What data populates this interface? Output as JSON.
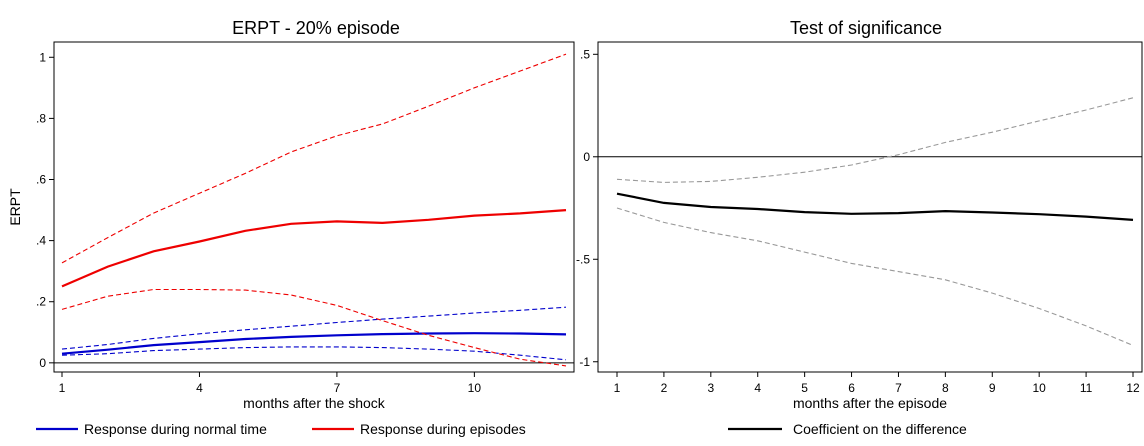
{
  "chart_data": [
    {
      "type": "line",
      "title": "ERPT - 20% episode",
      "xlabel": "months after the shock",
      "ylabel": "ERPT",
      "xlim": [
        1,
        12
      ],
      "ylim": [
        -0.03,
        1.05
      ],
      "x_ticks": [
        1,
        4,
        7,
        10
      ],
      "y_ticks": [
        0,
        0.2,
        0.4,
        0.6,
        0.8,
        1
      ],
      "y_tick_labels": [
        "0",
        ".2",
        ".4",
        ".6",
        ".8",
        "1"
      ],
      "zero_line": true,
      "legend_position": "bottom",
      "series": [
        {
          "name": "Response during normal time",
          "color": "#0000cc",
          "style": "solid",
          "x": [
            1,
            2,
            3,
            4,
            5,
            6,
            7,
            8,
            9,
            10,
            11,
            12
          ],
          "values": [
            0.03,
            0.043,
            0.058,
            0.068,
            0.078,
            0.085,
            0.09,
            0.094,
            0.096,
            0.097,
            0.096,
            0.093
          ]
        },
        {
          "name": "",
          "color": "#0000cc",
          "style": "dashed",
          "x": [
            1,
            2,
            3,
            4,
            5,
            6,
            7,
            8,
            9,
            10,
            11,
            12
          ],
          "values": [
            0.045,
            0.06,
            0.08,
            0.095,
            0.108,
            0.12,
            0.132,
            0.143,
            0.153,
            0.163,
            0.172,
            0.182
          ]
        },
        {
          "name": "",
          "color": "#0000cc",
          "style": "dashed",
          "x": [
            1,
            2,
            3,
            4,
            5,
            6,
            7,
            8,
            9,
            10,
            11,
            12
          ],
          "values": [
            0.025,
            0.03,
            0.04,
            0.045,
            0.05,
            0.052,
            0.052,
            0.05,
            0.045,
            0.038,
            0.025,
            0.01
          ]
        },
        {
          "name": "Response during episodes",
          "color": "#ee0000",
          "style": "solid",
          "x": [
            1,
            2,
            3,
            4,
            5,
            6,
            7,
            8,
            9,
            10,
            11,
            12
          ],
          "values": [
            0.25,
            0.315,
            0.365,
            0.397,
            0.432,
            0.455,
            0.463,
            0.458,
            0.468,
            0.482,
            0.489,
            0.5
          ]
        },
        {
          "name": "",
          "color": "#ee0000",
          "style": "dashed",
          "x": [
            1,
            2,
            3,
            4,
            5,
            6,
            7,
            8,
            9,
            10,
            11,
            12
          ],
          "values": [
            0.327,
            0.41,
            0.49,
            0.555,
            0.62,
            0.69,
            0.743,
            0.782,
            0.84,
            0.9,
            0.955,
            1.01
          ]
        },
        {
          "name": "",
          "color": "#ee0000",
          "style": "dashed",
          "x": [
            1,
            2,
            3,
            4,
            5,
            6,
            7,
            8,
            9,
            10,
            11,
            12
          ],
          "values": [
            0.175,
            0.218,
            0.24,
            0.24,
            0.238,
            0.222,
            0.188,
            0.138,
            0.09,
            0.05,
            0.012,
            -0.01
          ]
        }
      ]
    },
    {
      "type": "line",
      "title": "Test of significance",
      "xlabel": "months after the episode",
      "ylabel": "",
      "xlim": [
        1,
        12
      ],
      "ylim": [
        -1.05,
        0.56
      ],
      "x_ticks": [
        1,
        2,
        3,
        4,
        5,
        6,
        7,
        8,
        9,
        10,
        11,
        12
      ],
      "y_ticks": [
        -1,
        -0.5,
        0,
        0.5
      ],
      "y_tick_labels": [
        "-1",
        "-.5",
        "0",
        ".5"
      ],
      "zero_line": true,
      "legend_position": "bottom",
      "series": [
        {
          "name": "Coefficient on the difference",
          "color": "#000000",
          "style": "solid",
          "x": [
            1,
            2,
            3,
            4,
            5,
            6,
            7,
            8,
            9,
            10,
            11,
            12
          ],
          "values": [
            -0.18,
            -0.225,
            -0.245,
            -0.255,
            -0.27,
            -0.278,
            -0.275,
            -0.265,
            -0.272,
            -0.28,
            -0.292,
            -0.308
          ]
        },
        {
          "name": "",
          "color": "#999999",
          "style": "dashed",
          "x": [
            1,
            2,
            3,
            4,
            5,
            6,
            7,
            8,
            9,
            10,
            11,
            12
          ],
          "values": [
            -0.11,
            -0.125,
            -0.12,
            -0.1,
            -0.075,
            -0.04,
            0.01,
            0.07,
            0.12,
            0.175,
            0.228,
            0.288
          ]
        },
        {
          "name": "",
          "color": "#999999",
          "style": "dashed",
          "x": [
            1,
            2,
            3,
            4,
            5,
            6,
            7,
            8,
            9,
            10,
            11,
            12
          ],
          "values": [
            -0.25,
            -0.32,
            -0.37,
            -0.41,
            -0.465,
            -0.52,
            -0.56,
            -0.6,
            -0.665,
            -0.74,
            -0.825,
            -0.92
          ]
        }
      ]
    }
  ]
}
